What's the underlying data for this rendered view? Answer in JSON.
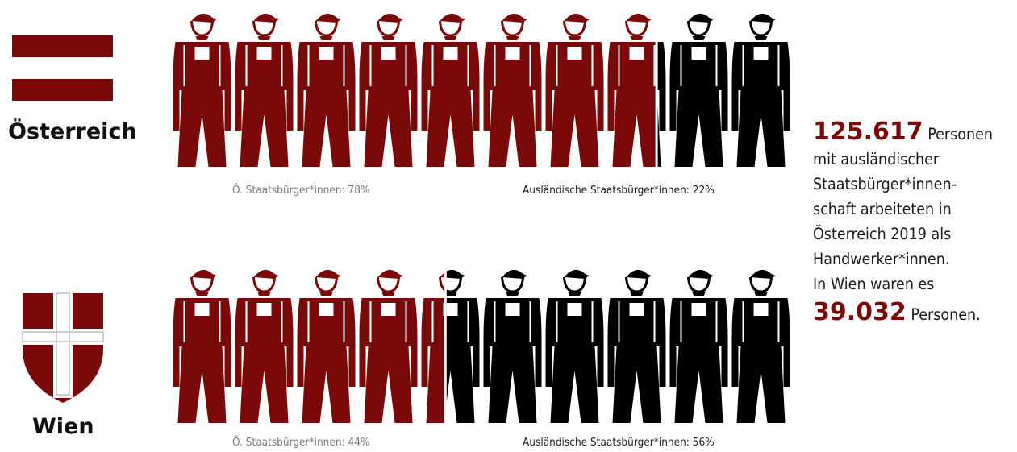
{
  "chart_data": {
    "type": "pictogram",
    "rows": [
      {
        "region": "Österreich",
        "series": [
          {
            "label": "Ö. Staatsbürger*innen: 78%",
            "percent": 78
          },
          {
            "label": "Ausländische Staatsbürger*innen: 22%",
            "percent": 22
          }
        ]
      },
      {
        "region": "Wien",
        "series": [
          {
            "label": "Ö. Staatsbürger*innen: 44%",
            "percent": 44
          },
          {
            "label": "Ausländische Staatsbürger*innen: 56%",
            "percent": 56
          }
        ]
      }
    ],
    "icons_per_row": 10
  },
  "colors": {
    "domestic": "#7a0a0a",
    "foreign": "#000000",
    "flag_red": "#7a0a0a",
    "crest_white": "#ffffff"
  },
  "summary": {
    "number_austria": "125.617",
    "line1_rest": " Personen",
    "line2": "mit ausländischer",
    "line3": "Staatsbürger*innen-",
    "line4": "schaft arbeiteten in",
    "line5": "Österreich 2019 als",
    "line6": "Handwerker*innen.",
    "line7": "In Wien waren es",
    "number_vienna": "39.032",
    "line8_rest": " Personen."
  },
  "icons": {
    "austria_flag": "austria-flag-icon",
    "vienna_crest": "vienna-crest-icon",
    "worker": "worker-overall-icon"
  }
}
